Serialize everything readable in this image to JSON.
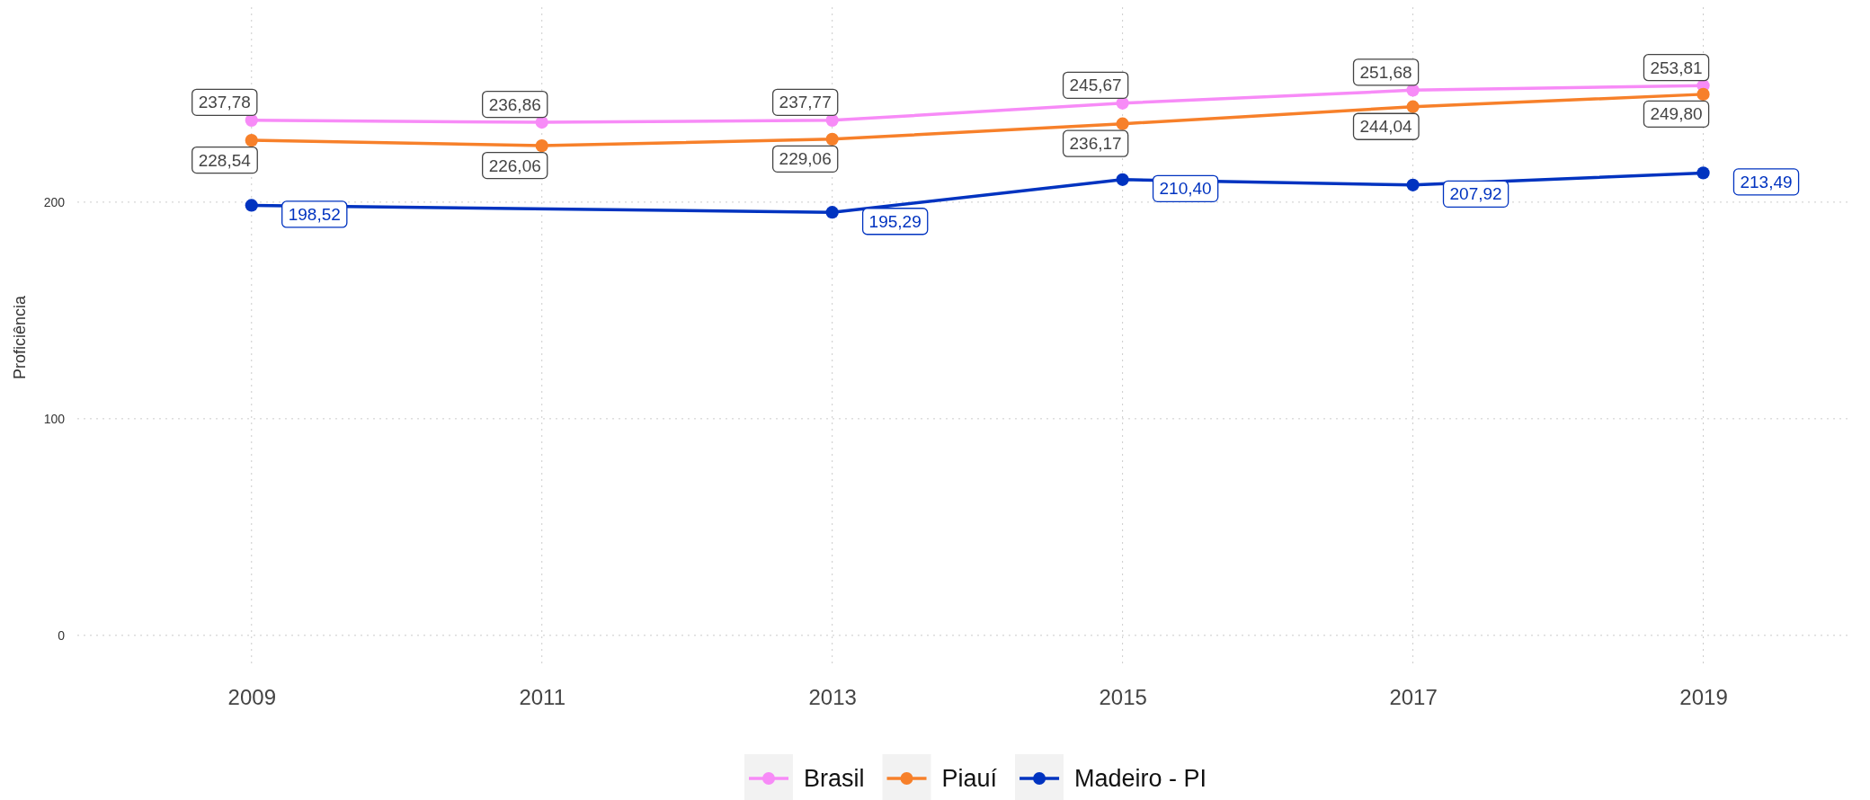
{
  "chart_data": {
    "type": "line",
    "ylabel": "Proficiência",
    "xlim": [
      2007.8,
      2020
    ],
    "xticks": [
      2009,
      2011,
      2013,
      2015,
      2017,
      2019
    ],
    "ylim": [
      -15,
      290
    ],
    "yticks": [
      0,
      100,
      200
    ],
    "grid": true,
    "legend": "bottom",
    "marker": "circle",
    "line_style": "solid",
    "series": [
      {
        "name": "Brasil",
        "color": "#f78bf7",
        "x": [
          2009,
          2011,
          2013,
          2015,
          2017,
          2019
        ],
        "values": [
          237.78,
          236.86,
          237.77,
          245.67,
          251.68,
          253.81
        ],
        "value_labels": [
          "237,78",
          "236,86",
          "237,77",
          "245,67",
          "251,68",
          "253,81"
        ]
      },
      {
        "name": "Piauí",
        "color": "#f7802a",
        "x": [
          2009,
          2011,
          2013,
          2015,
          2017,
          2019
        ],
        "values": [
          228.54,
          226.06,
          229.06,
          236.17,
          244.04,
          249.8
        ],
        "value_labels": [
          "228,54",
          "226,06",
          "229,06",
          "236,17",
          "244,04",
          "249,80"
        ]
      },
      {
        "name": "Madeiro - PI",
        "color": "#0033c0",
        "x": [
          2009,
          2013,
          2015,
          2017,
          2019
        ],
        "values": [
          198.52,
          195.29,
          210.4,
          207.92,
          213.49
        ],
        "value_labels": [
          "198,52",
          "195,29",
          "210,40",
          "207,92",
          "213,49"
        ]
      }
    ]
  }
}
